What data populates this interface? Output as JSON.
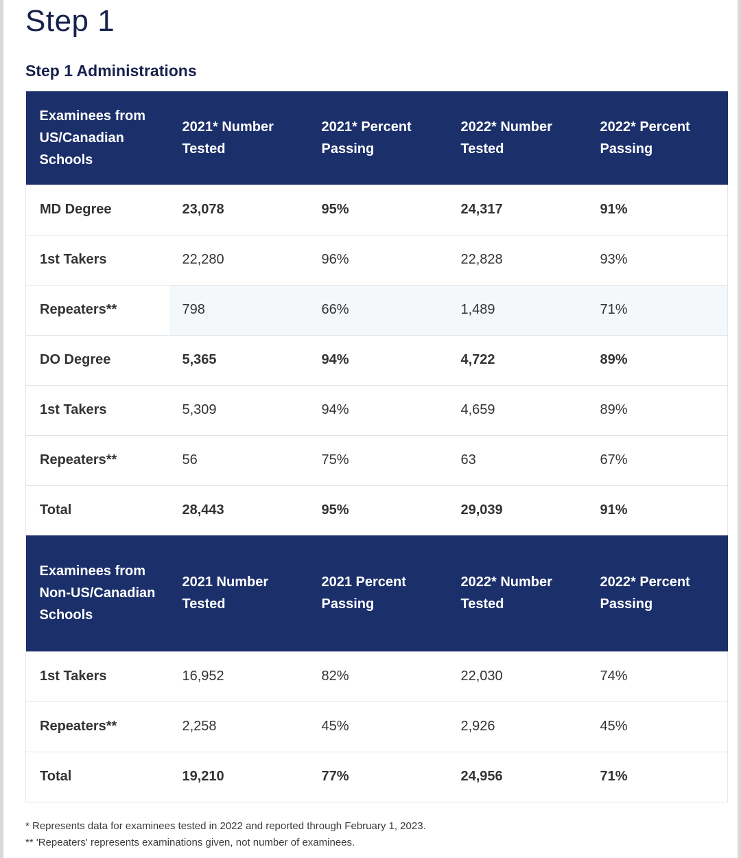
{
  "page_title": "Step 1",
  "section_title": "Step 1 Administrations",
  "us_table": {
    "headers": [
      "Examinees from US/Canadian Schools",
      "2021* Number Tested",
      "2021* Percent Passing",
      "2022* Number Tested",
      "2022* Percent Passing"
    ],
    "rows": [
      {
        "label": "MD Degree",
        "values": [
          "23,078",
          "95%",
          "24,317",
          "91%"
        ],
        "bold": true
      },
      {
        "label": "1st Takers",
        "values": [
          "22,280",
          "96%",
          "22,828",
          "93%"
        ],
        "bold": false
      },
      {
        "label": "Repeaters**",
        "values": [
          "798",
          "66%",
          "1,489",
          "71%"
        ],
        "bold": false
      },
      {
        "label": "DO Degree",
        "values": [
          "5,365",
          "94%",
          "4,722",
          "89%"
        ],
        "bold": true
      },
      {
        "label": "1st Takers",
        "values": [
          "5,309",
          "94%",
          "4,659",
          "89%"
        ],
        "bold": false
      },
      {
        "label": "Repeaters**",
        "values": [
          "56",
          "75%",
          "63",
          "67%"
        ],
        "bold": false
      },
      {
        "label": "Total",
        "values": [
          "28,443",
          "95%",
          "29,039",
          "91%"
        ],
        "bold": true
      }
    ]
  },
  "non_us_table": {
    "headers": [
      "Examinees from Non-US/Canadian Schools",
      "2021 Number Tested",
      "2021 Percent Passing",
      "2022* Number Tested",
      "2022* Percent Passing"
    ],
    "rows": [
      {
        "label": "1st Takers",
        "values": [
          "16,952",
          "82%",
          "22,030",
          "74%"
        ],
        "bold": false
      },
      {
        "label": "Repeaters**",
        "values": [
          "2,258",
          "45%",
          "2,926",
          "45%"
        ],
        "bold": false
      },
      {
        "label": "Total",
        "values": [
          "19,210",
          "77%",
          "24,956",
          "71%"
        ],
        "bold": true
      }
    ]
  },
  "footnotes": [
    "* Represents data for examinees tested in 2022 and reported through February 1, 2023.",
    "** 'Repeaters' represents examinations given, not number of examinees."
  ]
}
